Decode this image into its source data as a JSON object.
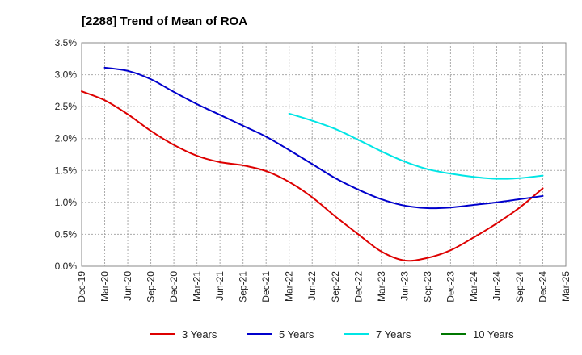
{
  "chart_data": {
    "type": "line",
    "title": "[2288]  Trend of Mean of ROA",
    "xlabel": "",
    "ylabel": "",
    "x": [
      "Dec-19",
      "Mar-20",
      "Jun-20",
      "Sep-20",
      "Dec-20",
      "Mar-21",
      "Jun-21",
      "Sep-21",
      "Dec-21",
      "Mar-22",
      "Jun-22",
      "Sep-22",
      "Dec-22",
      "Mar-23",
      "Jun-23",
      "Sep-23",
      "Dec-23",
      "Mar-24",
      "Jun-24",
      "Sep-24",
      "Dec-24",
      "Mar-25"
    ],
    "ylim": [
      0,
      3.5
    ],
    "yticks": [
      "0.0%",
      "0.5%",
      "1.0%",
      "1.5%",
      "2.0%",
      "2.5%",
      "3.0%",
      "3.5%"
    ],
    "grid": true,
    "legend_position": "bottom",
    "series": [
      {
        "name": "3 Years",
        "color": "#dd0000",
        "values": [
          2.74,
          2.6,
          2.38,
          2.12,
          1.9,
          1.73,
          1.63,
          1.58,
          1.49,
          1.32,
          1.08,
          0.78,
          0.5,
          0.23,
          0.09,
          0.13,
          0.25,
          0.45,
          0.67,
          0.92,
          1.22,
          null
        ]
      },
      {
        "name": "5 Years",
        "color": "#0000cc",
        "values": [
          null,
          3.11,
          3.06,
          2.93,
          2.73,
          2.54,
          2.37,
          2.2,
          2.03,
          1.82,
          1.6,
          1.38,
          1.2,
          1.05,
          0.95,
          0.91,
          0.92,
          0.96,
          1.0,
          1.05,
          1.1,
          null
        ]
      },
      {
        "name": "7 Years",
        "color": "#00e5e5",
        "values": [
          null,
          null,
          null,
          null,
          null,
          null,
          null,
          null,
          null,
          2.39,
          2.28,
          2.15,
          1.98,
          1.8,
          1.64,
          1.52,
          1.45,
          1.4,
          1.37,
          1.38,
          1.42,
          null
        ]
      },
      {
        "name": "10 Years",
        "color": "#007700",
        "values": [
          null,
          null,
          null,
          null,
          null,
          null,
          null,
          null,
          null,
          null,
          null,
          null,
          null,
          null,
          null,
          null,
          null,
          null,
          null,
          null,
          null,
          null
        ]
      }
    ]
  }
}
